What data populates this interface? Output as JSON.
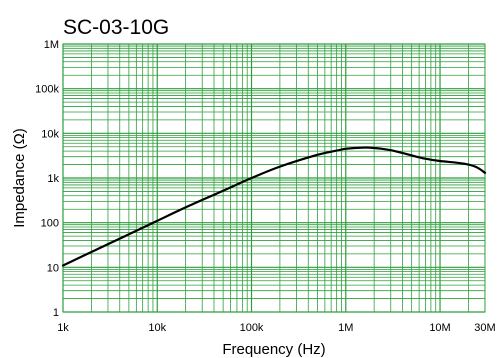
{
  "chart_data": {
    "type": "line",
    "title": "SC-03-10G",
    "xlabel": "Frequency (Hz)",
    "ylabel": "Impedance (Ω)",
    "x_scale": "log",
    "y_scale": "log",
    "xlim": [
      1000,
      30000000
    ],
    "ylim": [
      1,
      1000000
    ],
    "grid": true,
    "grid_color": "#2e9e3c",
    "line_color": "#000000",
    "x_ticks": [
      {
        "value": 1000,
        "label": "1k"
      },
      {
        "value": 10000,
        "label": "10k"
      },
      {
        "value": 100000,
        "label": "100k"
      },
      {
        "value": 1000000,
        "label": "1M"
      },
      {
        "value": 10000000,
        "label": "10M"
      },
      {
        "value": 30000000,
        "label": "30M"
      }
    ],
    "y_ticks": [
      {
        "value": 1,
        "label": "1"
      },
      {
        "value": 10,
        "label": "10"
      },
      {
        "value": 100,
        "label": "100"
      },
      {
        "value": 1000,
        "label": "1k"
      },
      {
        "value": 10000,
        "label": "10k"
      },
      {
        "value": 100000,
        "label": "100k"
      },
      {
        "value": 1000000,
        "label": "1M"
      }
    ],
    "series": [
      {
        "x": [
          1000,
          2000,
          5000,
          10000,
          20000,
          50000,
          100000,
          200000,
          500000,
          800000,
          1000000,
          1500000,
          2000000,
          3000000,
          5000000,
          7000000,
          10000000,
          15000000,
          20000000,
          25000000,
          30000000
        ],
        "y": [
          11,
          22,
          55,
          110,
          220,
          520,
          1000,
          1800,
          3300,
          4100,
          4500,
          4800,
          4700,
          4200,
          3200,
          2700,
          2400,
          2200,
          2000,
          1700,
          1300
        ]
      }
    ]
  }
}
